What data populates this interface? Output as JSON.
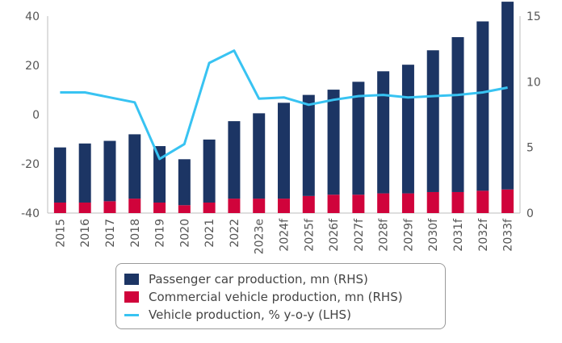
{
  "chart_data": {
    "type": "bar",
    "categories": [
      "2015",
      "2016",
      "2017",
      "2018",
      "2019",
      "2020",
      "2021",
      "2022",
      "2023e",
      "2024f",
      "2025f",
      "2026f",
      "2027f",
      "2028f",
      "2029f",
      "2030f",
      "2031f",
      "2032f",
      "2033f"
    ],
    "series": [
      {
        "name": "Passenger car production, mn (RHS)",
        "type": "bar",
        "axis": "right",
        "color": "#1c3564",
        "values": [
          4.2,
          4.5,
          4.6,
          4.9,
          4.3,
          3.5,
          4.8,
          5.9,
          6.5,
          7.3,
          7.7,
          8.0,
          8.6,
          9.3,
          9.8,
          10.8,
          11.8,
          12.9,
          14.3
        ]
      },
      {
        "name": "Commercial vehicle production, mn (RHS)",
        "type": "bar",
        "axis": "right",
        "color": "#d0033b",
        "values": [
          0.8,
          0.8,
          0.9,
          1.1,
          0.8,
          0.6,
          0.8,
          1.1,
          1.1,
          1.1,
          1.3,
          1.4,
          1.4,
          1.5,
          1.5,
          1.6,
          1.6,
          1.7,
          1.8
        ]
      },
      {
        "name": "Vehicle production, % y-o-y (LHS)",
        "type": "line",
        "axis": "left",
        "color": "#38c3f2",
        "values": [
          9,
          9,
          7,
          5,
          -18,
          -12,
          21,
          26,
          6.5,
          7,
          4,
          6,
          7.5,
          8,
          7,
          7.5,
          8,
          9,
          11
        ]
      }
    ],
    "y_left": {
      "ylim": [
        -40,
        40
      ],
      "ticks": [
        -40,
        -20,
        0,
        20,
        40
      ]
    },
    "y_right": {
      "ylim": [
        0,
        15
      ],
      "ticks": [
        0,
        5,
        10,
        15
      ]
    },
    "stacked": true,
    "grid": false,
    "legend_position": "bottom"
  }
}
